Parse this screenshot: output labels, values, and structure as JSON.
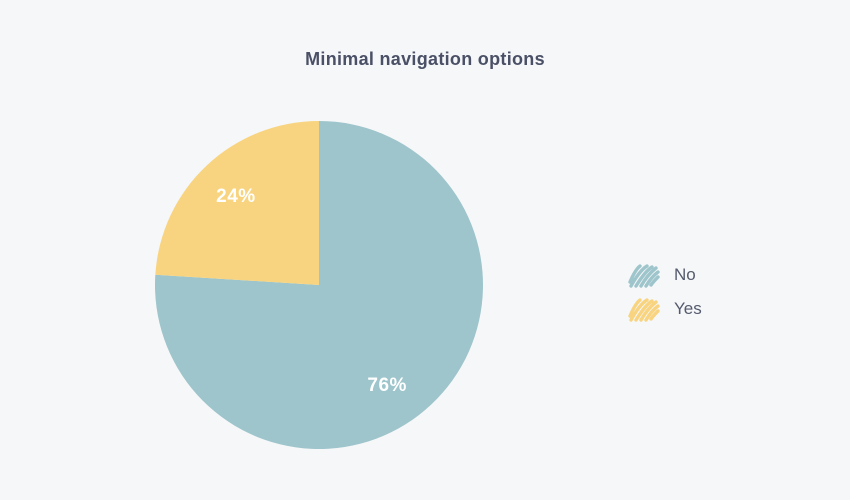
{
  "chart_data": {
    "type": "pie",
    "title": "Minimal navigation options",
    "categories": [
      "No",
      "Yes"
    ],
    "values": [
      76,
      24
    ],
    "slice_labels": [
      "76%",
      "24%"
    ],
    "colors": [
      "#9dc5cb",
      "#f8d480"
    ],
    "start_angle_deg": 0,
    "direction": "clockwise",
    "legend_position": "right",
    "background": "#f6f7f9",
    "label_color": "#ffffff"
  },
  "legend": {
    "items": [
      {
        "label": "No",
        "color": "#9dc5cb"
      },
      {
        "label": "Yes",
        "color": "#f8d480"
      }
    ]
  },
  "colors": {
    "background": "#f6f7f9",
    "title_text": "#4a5065",
    "legend_text": "#555b6e"
  }
}
